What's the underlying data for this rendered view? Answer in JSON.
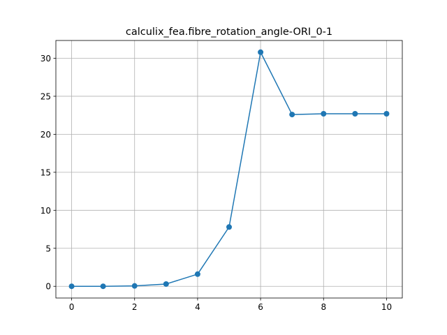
{
  "chart_data": {
    "type": "line",
    "title": "calculix_fea.fibre_rotation_angle-ORI_0-1",
    "xlabel": "",
    "ylabel": "",
    "x": [
      0,
      1,
      2,
      3,
      4,
      5,
      6,
      7,
      8,
      9,
      10
    ],
    "series": [
      {
        "values": [
          0.0,
          0.0,
          0.05,
          0.3,
          1.6,
          7.8,
          30.8,
          22.6,
          22.7,
          22.7,
          22.7
        ],
        "color": "#1f77b4",
        "marker": "circle"
      }
    ],
    "xlim": [
      -0.5,
      10.5
    ],
    "ylim": [
      -1.54,
      32.34
    ],
    "xticks": [
      "0",
      "2",
      "4",
      "6",
      "8",
      "10"
    ],
    "yticks": [
      "0",
      "5",
      "10",
      "15",
      "20",
      "25",
      "30"
    ],
    "grid": true,
    "legend": "none"
  }
}
